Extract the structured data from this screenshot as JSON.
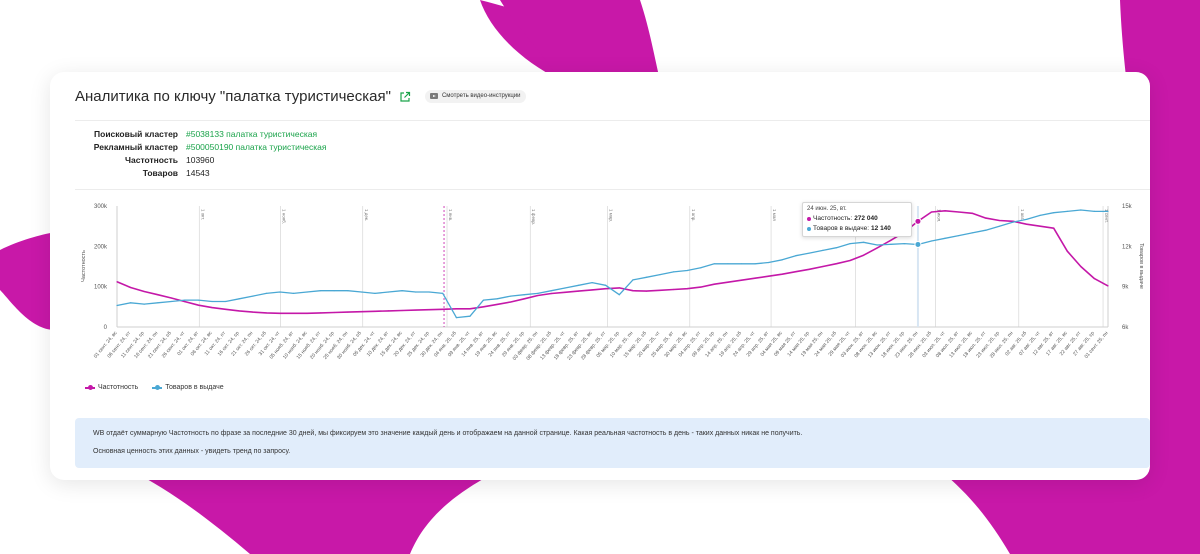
{
  "page": {
    "title": "Аналитика по ключу \"палатка туристическая\"",
    "video_button": "Смотреть видео-инструкции"
  },
  "info": {
    "search_cluster_label": "Поисковый кластер",
    "search_cluster_value": "#5038133 палатка туристическая",
    "ad_cluster_label": "Рекламный кластер",
    "ad_cluster_value": "#500050190 палатка туристическая",
    "frequency_label": "Частотность",
    "frequency_value": "103960",
    "goods_label": "Товаров",
    "goods_value": "14543"
  },
  "tooltip": {
    "date": "24 июн. 25, вт.",
    "freq_label": "Частотность:",
    "freq_value": "272 040",
    "goods_label": "Товаров в выдаче:",
    "goods_value": "12 140"
  },
  "legend": {
    "frequency": "Частотность",
    "goods": "Товаров в выдаче"
  },
  "note": {
    "line1": "WB отдаёт суммарную Частотность по фразе за последние 30 дней, мы фиксируем это значение каждый день и отображаем на данной странице. Какая реальная частотность в день - таких данных никак не получить.",
    "line2": "Основная ценность этих данных - увидеть тренд по запросу."
  },
  "colors": {
    "frequency": "#c418a8",
    "goods": "#4aa8d4",
    "link": "#1aa34a",
    "brand_bg": "#c818a8",
    "note_bg": "#e1edfb"
  },
  "chart_data": {
    "type": "line",
    "x": [
      "01 сент. 24, вс",
      "06 сент. 24, пт",
      "11 сент. 24, ср",
      "16 сент. 24, пн",
      "21 сент. 24, сб",
      "26 сент. 24, чт",
      "01 окт. 24, вт",
      "06 окт. 24, вс",
      "11 окт. 24, пт",
      "16 окт. 24, ср",
      "21 окт. 24, пн",
      "26 окт. 24, сб",
      "31 окт. 24, чт",
      "05 нояб. 24, вт",
      "10 нояб. 24, вс",
      "15 нояб. 24, пт",
      "20 нояб. 24, ср",
      "25 нояб. 24, пн",
      "30 нояб. 24, сб",
      "05 дек. 24, чт",
      "10 дек. 24, вт",
      "15 дек. 24, вс",
      "20 дек. 24, пт",
      "25 дек. 24, ср",
      "30 дек. 24, пн",
      "04 янв. 25, сб",
      "09 янв. 25, чт",
      "14 янв. 25, вт",
      "19 янв. 25, вс",
      "24 янв. 25, пт",
      "29 янв. 25, ср",
      "03 февр. 25, пн",
      "08 февр. 25, сб",
      "13 февр. 25, чт",
      "18 февр. 25, вт",
      "23 февр. 25, вс",
      "28 февр. 25, пт",
      "05 мар. 25, ср",
      "10 мар. 25, пн",
      "15 мар. 25, сб",
      "20 мар. 25, чт",
      "25 мар. 25, вт",
      "30 мар. 25, вс",
      "04 апр. 25, пт",
      "09 апр. 25, ср",
      "14 апр. 25, пн",
      "19 апр. 25, сб",
      "24 апр. 25, чт",
      "29 апр. 25, вт",
      "04 мая 25, вс",
      "09 мая 25, пт",
      "14 мая 25, ср",
      "19 мая 25, пн",
      "24 мая 25, сб",
      "29 мая 25, чт",
      "03 июн. 25, вт",
      "08 июн. 25, вс",
      "13 июн. 25, пт",
      "18 июн. 25, ср",
      "23 июн. 25, пн",
      "28 июн. 25, сб",
      "03 июл. 25, чт",
      "08 июл. 25, вт",
      "13 июл. 25, вс",
      "18 июл. 25, пт",
      "23 июл. 25, ср",
      "28 июл. 25, пн",
      "02 авг. 25, сб",
      "07 авг. 25, чт",
      "12 авг. 25, вт",
      "17 авг. 25, вс",
      "22 авг. 25, пт",
      "27 авг. 25, ср",
      "01 сент. 25, пн"
    ],
    "series": [
      {
        "name": "Частотность",
        "axis": "left",
        "values": [
          112000,
          98000,
          88000,
          80000,
          72000,
          63000,
          54000,
          48000,
          44000,
          40000,
          37000,
          35000,
          34000,
          34000,
          34000,
          35000,
          36000,
          37000,
          38000,
          39000,
          40000,
          41000,
          42000,
          43000,
          44000,
          45000,
          45000,
          50000,
          56000,
          62000,
          70000,
          78000,
          83000,
          86000,
          89000,
          92000,
          95000,
          97000,
          90000,
          89000,
          91000,
          93000,
          95000,
          99000,
          106000,
          111000,
          116000,
          121000,
          126000,
          131000,
          137000,
          143000,
          150000,
          157000,
          165000,
          178000,
          196000,
          215000,
          235000,
          262000,
          285000,
          288000,
          285000,
          282000,
          270000,
          264000,
          262000,
          255000,
          250000,
          245000,
          188000,
          150000,
          120000,
          102000
        ]
      },
      {
        "name": "Товаров в выдаче",
        "axis": "right",
        "values": [
          7600,
          7800,
          7700,
          7800,
          7900,
          8000,
          8000,
          7900,
          7900,
          8100,
          8300,
          8500,
          8600,
          8500,
          8600,
          8700,
          8700,
          8700,
          8600,
          8500,
          8600,
          8700,
          8600,
          8600,
          8500,
          6700,
          6800,
          8000,
          8100,
          8300,
          8400,
          8500,
          8700,
          8900,
          9100,
          9300,
          9100,
          8400,
          9500,
          9700,
          9900,
          10100,
          10200,
          10400,
          10700,
          10700,
          10700,
          10700,
          10800,
          11000,
          11300,
          11500,
          11700,
          11900,
          12200,
          12300,
          12100,
          12150,
          12200,
          12140,
          12400,
          12600,
          12800,
          13000,
          13200,
          13500,
          13800,
          14000,
          14300,
          14500,
          14600,
          14700,
          14600,
          14600
        ]
      }
    ],
    "ylim_left": [
      0,
      300000
    ],
    "ylim_right": [
      6000,
      15000
    ],
    "yticks_left": [
      "0",
      "100k",
      "200k",
      "300k"
    ],
    "yticks_right": [
      "6k",
      "9k",
      "12k",
      "15k"
    ],
    "ylabel_left": "Частотность",
    "ylabel_right": "Товаров в выдаче",
    "month_markers": [
      "1 окт.",
      "1 нояб.",
      "1 дек.",
      "1 янв.",
      "1 февр.",
      "1 мар.",
      "1 апр.",
      "1 мая",
      "1 июн.",
      "1 июл.",
      "1 авг.",
      "1 сент."
    ],
    "grid": "vertical month lines",
    "legend_position": "bottom-left"
  }
}
